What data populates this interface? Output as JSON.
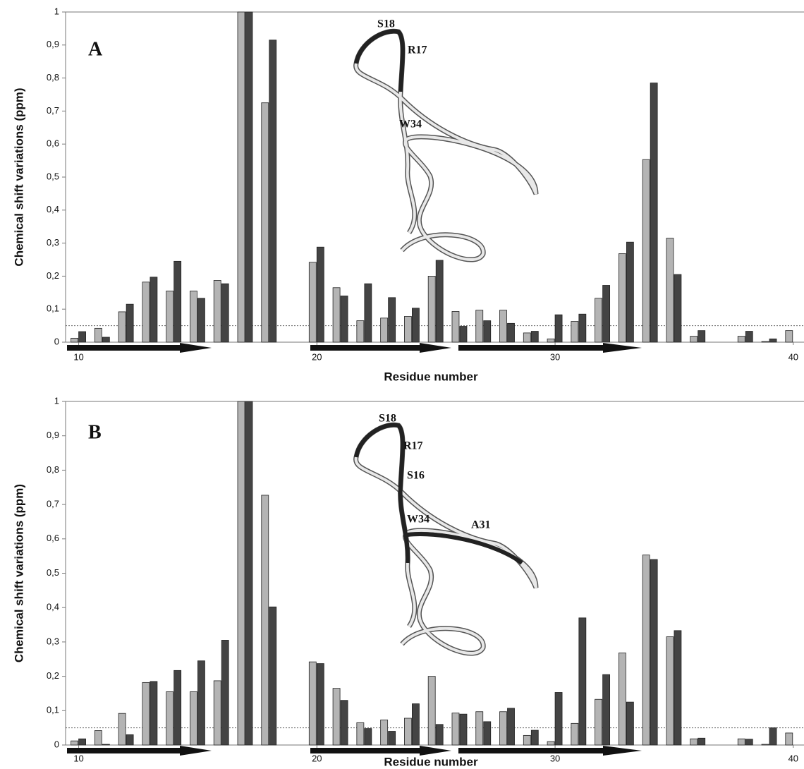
{
  "chart_data": [
    {
      "type": "bar",
      "title": "A",
      "xlabel": "Residue number",
      "ylabel": "Chemical shift variations (ppm)",
      "annotations": [
        "S18",
        "R17",
        "W34"
      ],
      "x": [
        10,
        11,
        12,
        13,
        14,
        15,
        16,
        17,
        18,
        19,
        20,
        21,
        22,
        23,
        24,
        25,
        26,
        27,
        28,
        29,
        30,
        31,
        32,
        33,
        34,
        35,
        36,
        37,
        38,
        39,
        40
      ],
      "series": [
        {
          "color": "#b4b4b4",
          "values": [
            0.012,
            0.042,
            0.092,
            0.182,
            0.155,
            0.155,
            0.187,
            1,
            0.725,
            null,
            0.242,
            0.165,
            0.065,
            0.073,
            0.078,
            0.2,
            0.093,
            0.097,
            0.097,
            0.028,
            0.01,
            0.063,
            0.133,
            0.268,
            0.553,
            0.315,
            0.018,
            null,
            0.018,
            0.002,
            0.035
          ]
        },
        {
          "color": "#444444",
          "values": [
            0.032,
            0.015,
            0.115,
            0.197,
            0.245,
            0.133,
            0.177,
            1,
            0.915,
            null,
            0.288,
            0.14,
            0.177,
            0.135,
            0.103,
            0.248,
            0.048,
            0.065,
            0.057,
            0.033,
            0.083,
            0.085,
            0.172,
            0.303,
            0.785,
            0.205,
            0.035,
            null,
            0.033,
            0.01,
            null
          ]
        }
      ],
      "threshold": 0.05,
      "xlim": [
        9.45,
        40.45
      ],
      "xticks": [
        10,
        20,
        30,
        40
      ],
      "ylim": [
        0,
        1
      ],
      "yticks": [
        0,
        {
          "value": 0.1,
          "label": "0,1"
        },
        {
          "value": 0.2,
          "label": "0,2"
        },
        {
          "value": 0.3,
          "label": "0,3"
        },
        {
          "value": 0.4,
          "label": "0,4"
        },
        {
          "value": 0.5,
          "label": "0,5"
        },
        {
          "value": 0.6,
          "label": "0,6"
        },
        {
          "value": 0.7,
          "label": "0,7"
        },
        {
          "value": 0.8,
          "label": "0,8"
        },
        {
          "value": 0.9,
          "label": "0,9"
        },
        1
      ]
    },
    {
      "type": "bar",
      "title": "B",
      "xlabel": "Residue number",
      "ylabel": "Chemical shift variations (ppm)",
      "annotations": [
        "S18",
        "R17",
        "S16",
        "W34",
        "A31"
      ],
      "x": [
        10,
        11,
        12,
        13,
        14,
        15,
        16,
        17,
        18,
        19,
        20,
        21,
        22,
        23,
        24,
        25,
        26,
        27,
        28,
        29,
        30,
        31,
        32,
        33,
        34,
        35,
        36,
        37,
        38,
        39,
        40
      ],
      "series": [
        {
          "color": "#b4b4b4",
          "values": [
            0.012,
            0.042,
            0.092,
            0.182,
            0.155,
            0.155,
            0.187,
            1,
            0.727,
            null,
            0.242,
            0.165,
            0.065,
            0.073,
            0.078,
            0.2,
            0.093,
            0.097,
            0.097,
            0.028,
            0.01,
            0.063,
            0.133,
            0.268,
            0.553,
            0.315,
            0.018,
            null,
            0.018,
            0.002,
            0.035
          ]
        },
        {
          "color": "#444444",
          "values": [
            0.018,
            0.002,
            0.03,
            0.185,
            0.217,
            0.245,
            0.305,
            1,
            0.402,
            null,
            0.237,
            0.13,
            0.048,
            0.04,
            0.12,
            0.06,
            0.09,
            0.068,
            0.107,
            0.043,
            0.153,
            0.37,
            0.205,
            0.125,
            0.54,
            0.333,
            0.02,
            null,
            0.017,
            0.05,
            null
          ]
        }
      ],
      "threshold": 0.05,
      "xlim": [
        9.45,
        40.45
      ],
      "xticks": [
        10,
        20,
        30,
        40
      ],
      "ylim": [
        0,
        1
      ],
      "yticks": [
        0,
        {
          "value": 0.1,
          "label": "0,1"
        },
        {
          "value": 0.2,
          "label": "0,2"
        },
        {
          "value": 0.3,
          "label": "0,3"
        },
        {
          "value": 0.4,
          "label": "0,4"
        },
        {
          "value": 0.5,
          "label": "0,5"
        },
        {
          "value": 0.6,
          "label": "0,6"
        },
        {
          "value": 0.7,
          "label": "0,7"
        },
        {
          "value": 0.8,
          "label": "0,8"
        },
        {
          "value": 0.9,
          "label": "0,9"
        },
        1
      ]
    }
  ]
}
